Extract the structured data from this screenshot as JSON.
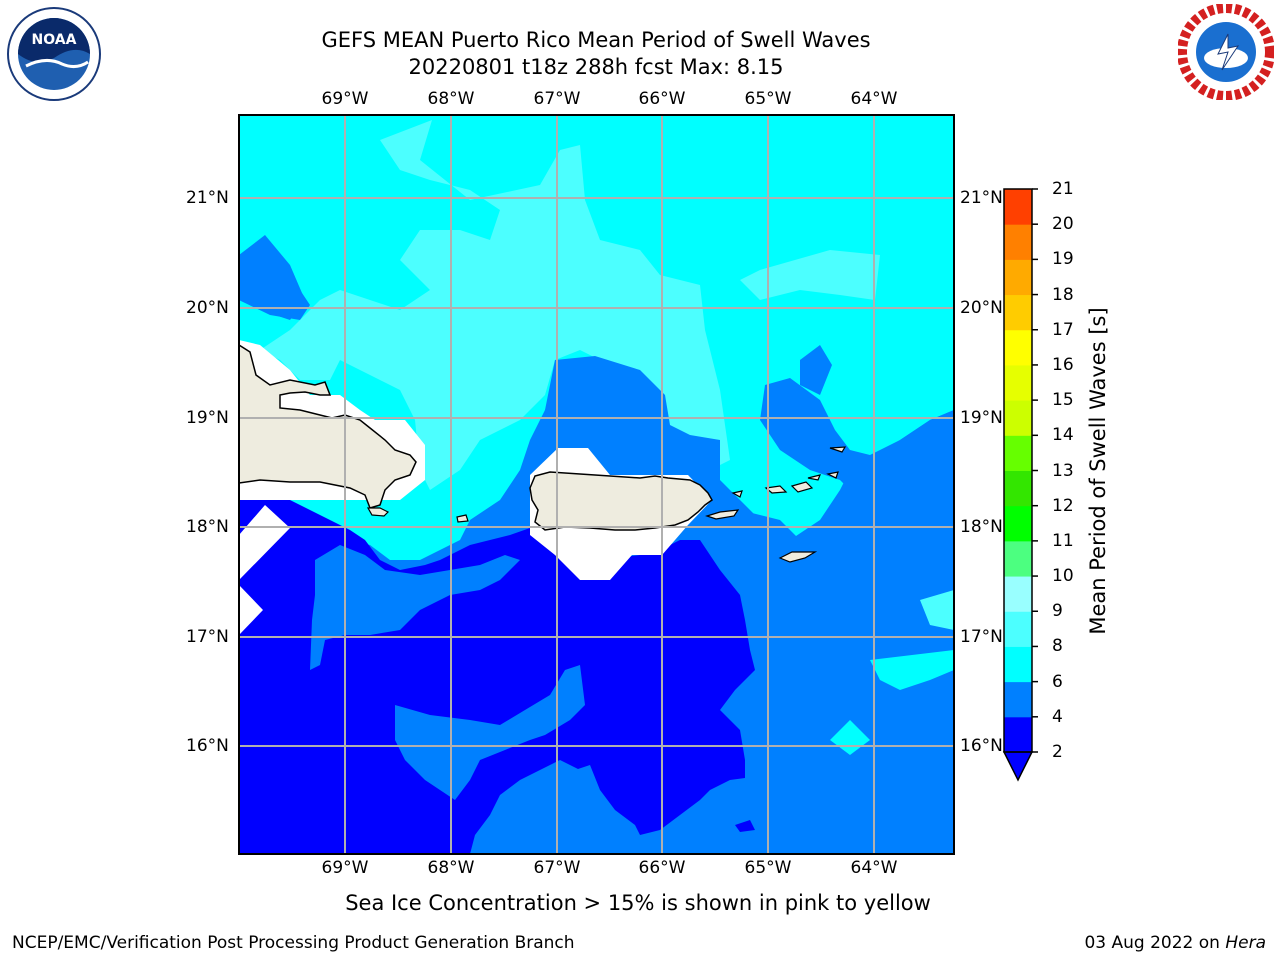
{
  "title": {
    "line1": "GEFS MEAN Puerto Rico Mean Period of Swell Waves",
    "line2": "20220801 t18z 288h fcst   Max: 8.15"
  },
  "logos": {
    "left": "noaa-logo",
    "right": "nws-logo"
  },
  "map": {
    "longitude_labels": [
      "69°W",
      "68°W",
      "67°W",
      "66°W",
      "65°W",
      "64°W"
    ],
    "latitude_labels": [
      "21°N",
      "20°N",
      "19°N",
      "18°N",
      "17°N",
      "16°N"
    ],
    "land_color": "#eeecdf",
    "ocean_colors": {
      "2-4": "#0000ff",
      "4-6": "#0080ff",
      "6-8": "#00ffff",
      "8-9": "#4cffff"
    }
  },
  "colorbar": {
    "label": "Mean Period of Swell Waves [s]",
    "ticks": [
      "2",
      "4",
      "6",
      "8",
      "9",
      "10",
      "11",
      "12",
      "13",
      "14",
      "15",
      "16",
      "17",
      "18",
      "19",
      "20",
      "21"
    ],
    "colors": [
      "#0000ff",
      "#0080ff",
      "#00ffff",
      "#4cffff",
      "#99ffff",
      "#4cff80",
      "#00ff00",
      "#33e600",
      "#66ff00",
      "#ccff00",
      "#e6ff00",
      "#ffff00",
      "#ffcc00",
      "#ffaa00",
      "#ff8000",
      "#ff4000",
      "#ff0000"
    ]
  },
  "note": "Sea Ice Concentration > 15% is shown in pink to yellow",
  "footer": {
    "left": "NCEP/EMC/Verification Post Processing Product Generation Branch",
    "right_date": "03 Aug 2022 on ",
    "right_host": "Hera"
  }
}
